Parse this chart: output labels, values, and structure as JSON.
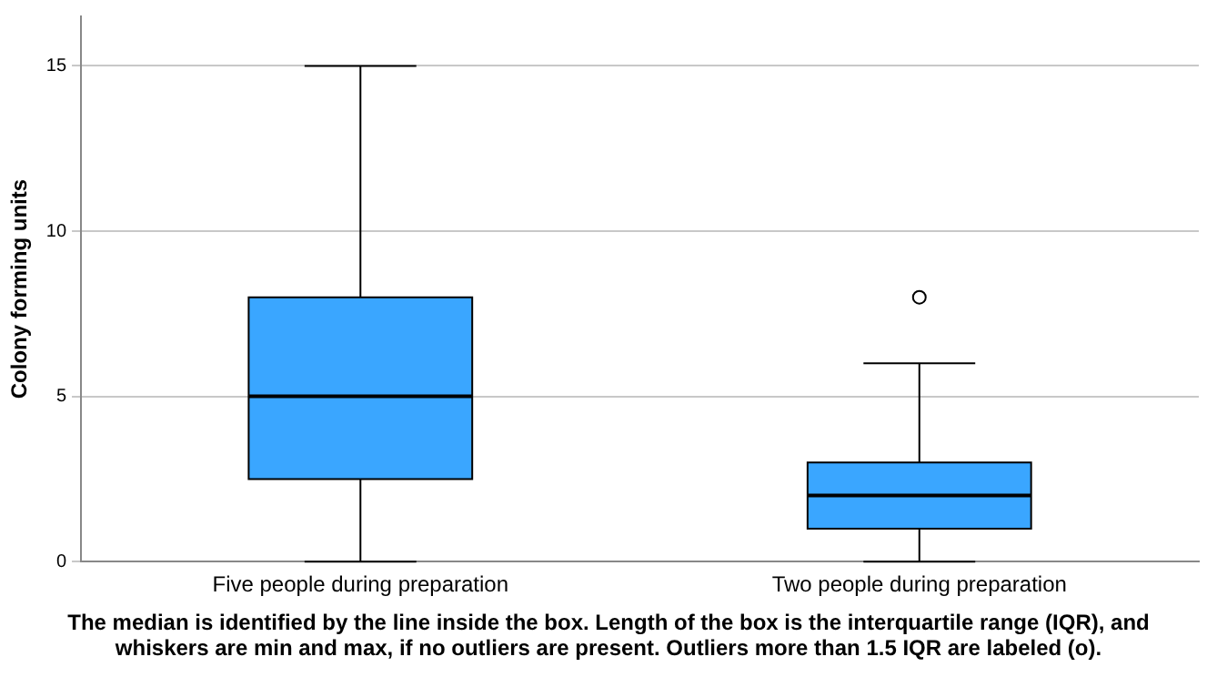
{
  "chart_data": {
    "type": "box",
    "ylabel": "Colony forming units",
    "categories": [
      "Five people during preparation",
      "Two people during preparation"
    ],
    "boxes": [
      {
        "low": 0,
        "q1": 2.5,
        "median": 5,
        "q3": 8,
        "high": 15
      },
      {
        "low": 0,
        "q1": 1,
        "median": 2,
        "q3": 3,
        "high": 6,
        "outliers": [
          8
        ]
      }
    ],
    "color": "#3aa6ff",
    "ylim": [
      0,
      16.5
    ],
    "yticks": [
      0,
      5,
      10,
      15
    ],
    "grid": "y",
    "legend": false,
    "annotations": [
      "The median is identified by the line inside the box. Length of the box is the interquartile range (IQR), and whiskers are min and max, if no outliers are present. Outliers more than 1.5 IQR are labeled (o)."
    ]
  }
}
